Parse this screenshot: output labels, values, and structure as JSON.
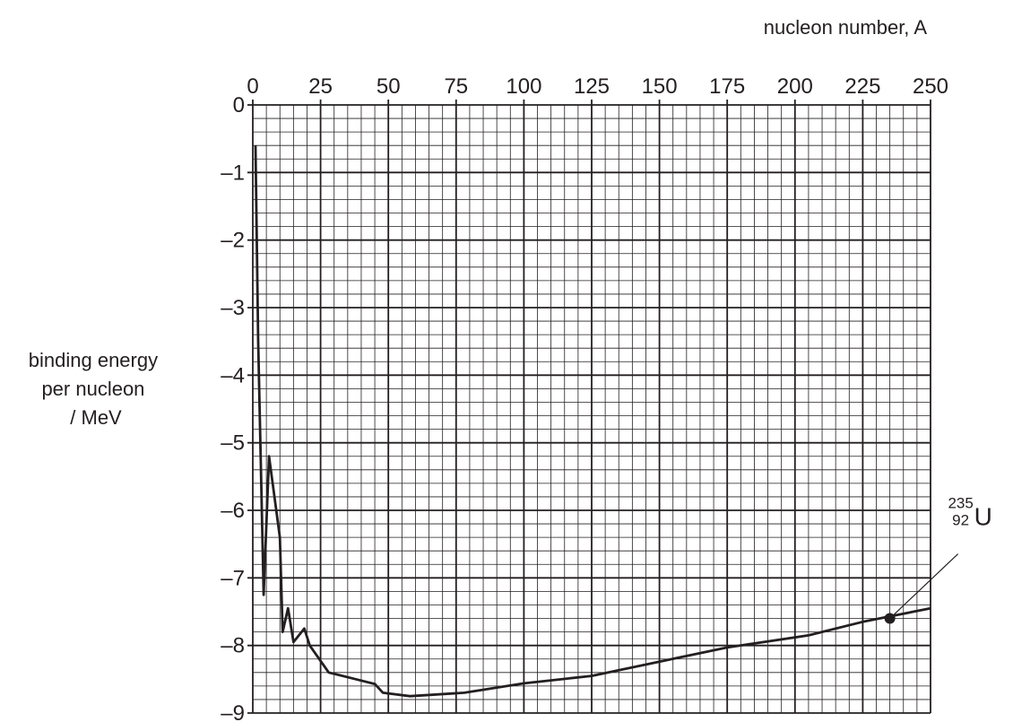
{
  "chart_data": {
    "type": "line",
    "xlabel": "nucleon number, A",
    "ylabel_lines": [
      "binding energy",
      "per nucleon",
      "/ MeV"
    ],
    "x_axis_position": "top",
    "xlim": [
      0,
      250
    ],
    "ylim": [
      -9,
      0
    ],
    "x_ticks": [
      0,
      25,
      50,
      75,
      100,
      125,
      150,
      175,
      200,
      225,
      250
    ],
    "x_tick_labels": [
      "0",
      "25",
      "50",
      "75",
      "100",
      "125",
      "150",
      "175",
      "200",
      "225",
      "250"
    ],
    "y_ticks": [
      0,
      -1,
      -2,
      -3,
      -4,
      -5,
      -6,
      -7,
      -8,
      -9
    ],
    "y_tick_labels": [
      "0",
      "–1",
      "–2",
      "–3",
      "–4",
      "–5",
      "–6",
      "–7",
      "–8",
      "–9"
    ],
    "grid": {
      "major_x": 25,
      "major_y": 1,
      "minor_x": 5,
      "minor_y": 0.2
    },
    "series": [
      {
        "x": [
          1,
          2,
          4,
          6,
          10,
          11,
          13,
          15,
          19,
          21,
          28,
          38,
          45,
          48,
          58,
          78,
          100,
          125,
          150,
          175,
          205,
          225,
          250
        ],
        "y": [
          -0.6,
          -3.5,
          -7.25,
          -5.2,
          -6.4,
          -7.8,
          -7.45,
          -7.95,
          -7.75,
          -8.0,
          -8.4,
          -8.5,
          -8.57,
          -8.7,
          -8.75,
          -8.7,
          -8.56,
          -8.45,
          -8.24,
          -8.03,
          -7.85,
          -7.65,
          -7.45
        ]
      }
    ],
    "annotations": [
      {
        "x": 235,
        "y": -7.6,
        "mass_number": "235",
        "atomic_number": "92",
        "symbol": "U",
        "marker": "filled-circle"
      }
    ]
  }
}
